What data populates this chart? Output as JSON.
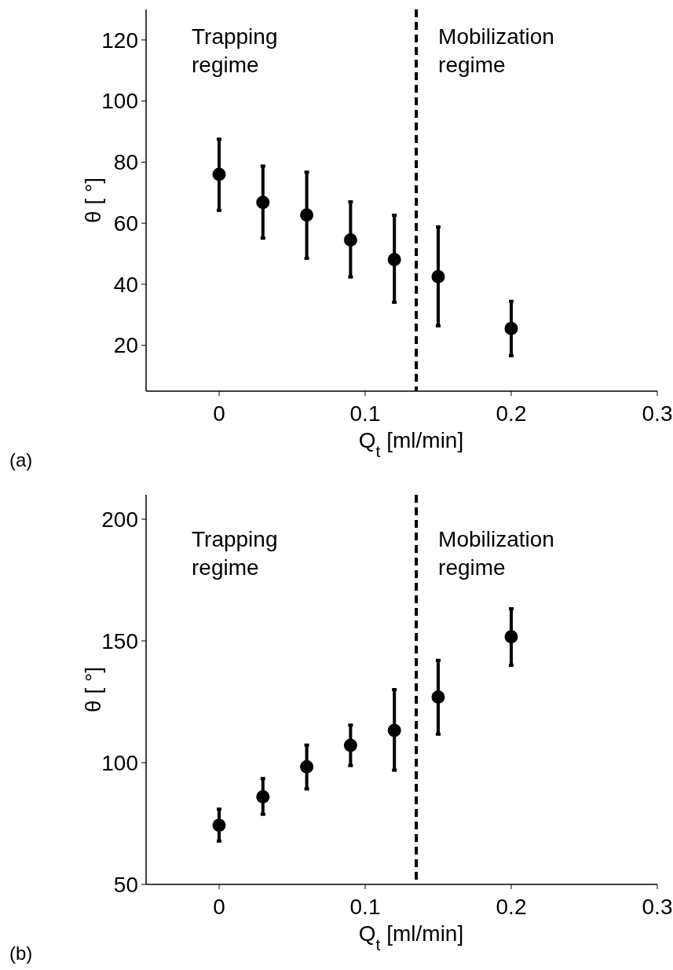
{
  "chart_data": [
    {
      "type": "scatter",
      "title": "(a)",
      "xlabel": "Q$_{t}$ [ml/min]",
      "ylabel": "θ [ °]",
      "xlim": [
        -0.05,
        0.3
      ],
      "xticks": [
        0,
        0.1,
        0.2,
        0.3
      ],
      "ylim": [
        5,
        130
      ],
      "yticks": [
        20,
        40,
        60,
        80,
        100,
        120
      ],
      "marker": "circle",
      "grid": false,
      "series": [
        {
          "color": "#000000",
          "x": [
            0,
            0.03,
            0.06,
            0.09,
            0.12,
            0.15,
            0.2
          ],
          "values": [
            76,
            66.8,
            62.7,
            54.5,
            48.1,
            42.5,
            25.5
          ],
          "errors": [
            [
              64.2,
              87.5
            ],
            [
              55.1,
              78.7
            ],
            [
              48.5,
              76.7
            ],
            [
              42.4,
              67
            ],
            [
              34.1,
              62.6
            ],
            [
              26.4,
              58.8
            ],
            [
              16.6,
              34.4
            ]
          ]
        }
      ],
      "ref_lines": [
        {
          "axis": "x",
          "value": 0.135,
          "color": "#000000",
          "line_style": "dashed"
        }
      ],
      "annotations": [
        "Trapping regime",
        "Mobilization regime"
      ]
    },
    {
      "type": "scatter",
      "title": "(b)",
      "xlabel": "Q$_{t}$ [ml/min]",
      "ylabel": "θ [ °]",
      "xlim": [
        -0.05,
        0.3
      ],
      "xticks": [
        0,
        0.1,
        0.2,
        0.3
      ],
      "ylim": [
        50,
        210
      ],
      "yticks": [
        50,
        100,
        150,
        200
      ],
      "marker": "circle",
      "grid": false,
      "series": [
        {
          "color": "#000000",
          "x": [
            0,
            0.03,
            0.06,
            0.09,
            0.12,
            0.15,
            0.2
          ],
          "values": [
            74.3,
            86,
            98.3,
            107.1,
            113.2,
            126.9,
            151.7
          ],
          "errors": [
            [
              67.8,
              80.9
            ],
            [
              78.8,
              93.5
            ],
            [
              89.2,
              107.2
            ],
            [
              98.8,
              115.4
            ],
            [
              96.9,
              130
            ],
            [
              111.7,
              142
            ],
            [
              140,
              163.2
            ]
          ]
        }
      ],
      "ref_lines": [
        {
          "axis": "x",
          "value": 0.135,
          "color": "#000000",
          "line_style": "dashed"
        }
      ],
      "annotations": [
        "Trapping regime",
        "Mobilization regime"
      ]
    }
  ]
}
